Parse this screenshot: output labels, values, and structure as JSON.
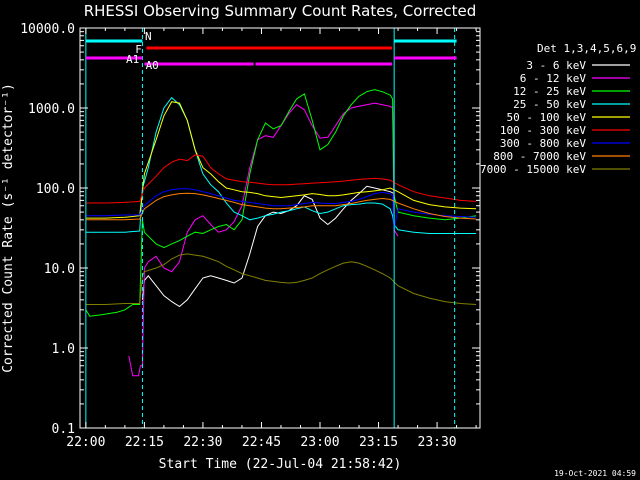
{
  "chart_data": {
    "type": "line",
    "title": "RHESSI Observing Summary Count Rates, Corrected",
    "xlabel": "Start Time (22-Jul-04 21:58:42)",
    "ylabel": "Corrected Count Rate (s⁻¹ detector⁻¹)",
    "yscale": "log",
    "ylim": [
      0.1,
      10000
    ],
    "xlim_minutes": [
      -1.5,
      101
    ],
    "x_ticks": [
      {
        "m": 0,
        "label": "22:00"
      },
      {
        "m": 15,
        "label": "22:15"
      },
      {
        "m": 30,
        "label": "22:30"
      },
      {
        "m": 45,
        "label": "22:45"
      },
      {
        "m": 60,
        "label": "23:00"
      },
      {
        "m": 75,
        "label": "23:15"
      },
      {
        "m": 90,
        "label": "23:30"
      }
    ],
    "y_ticks": [
      {
        "v": 0.1,
        "label": "0.1"
      },
      {
        "v": 1,
        "label": "1.0"
      },
      {
        "v": 10,
        "label": "10.0"
      },
      {
        "v": 100,
        "label": "100.0"
      },
      {
        "v": 1000,
        "label": "1000.0"
      },
      {
        "v": 10000,
        "label": "10000.0"
      }
    ],
    "legend_title": "Det 1,3,4,5,6,9",
    "legend_position": "right",
    "grid": false,
    "series": [
      {
        "name": "3 - 6 keV",
        "color": "#ffffff",
        "x": [
          14.5,
          15,
          16,
          18,
          20,
          22,
          24,
          26,
          28,
          30,
          32,
          34,
          36,
          38,
          40,
          42,
          44,
          46,
          48,
          50,
          52,
          54,
          56,
          58,
          60,
          62,
          64,
          66,
          68,
          70,
          72,
          74,
          76,
          78,
          79
        ],
        "y": [
          4,
          7,
          8,
          6,
          4.5,
          3.8,
          3.3,
          4,
          5.5,
          7.5,
          8,
          7.5,
          7,
          6.5,
          7.5,
          15,
          33,
          45,
          50,
          48,
          52,
          60,
          80,
          72,
          42,
          35,
          42,
          55,
          70,
          85,
          105,
          100,
          95,
          90,
          85
        ]
      },
      {
        "name": "6 - 12 keV",
        "color": "#ff00ff",
        "x": [
          11,
          12,
          13.5,
          14,
          14.5,
          15,
          16,
          18,
          20,
          22,
          24,
          26,
          28,
          30,
          32,
          34,
          36,
          38,
          40,
          42,
          44,
          46,
          48,
          50,
          52,
          54,
          56,
          58,
          60,
          62,
          64,
          66,
          68,
          70,
          72,
          74,
          76,
          78,
          78.6,
          79,
          80
        ],
        "y": [
          0.8,
          0.45,
          0.45,
          0.6,
          0.6,
          10,
          12,
          14,
          10,
          9,
          12,
          28,
          40,
          45,
          35,
          28,
          30,
          38,
          60,
          180,
          400,
          450,
          430,
          600,
          850,
          1100,
          950,
          600,
          420,
          430,
          600,
          850,
          1000,
          1050,
          1100,
          1150,
          1100,
          1050,
          1000,
          30,
          25
        ]
      },
      {
        "name": "12 - 25 keV",
        "color": "#00ff00",
        "x": [
          0,
          1,
          4,
          8,
          10,
          12,
          13.8,
          14.5,
          15,
          16,
          18,
          20,
          22,
          24,
          26,
          28,
          30,
          32,
          34,
          36,
          38,
          40,
          42,
          44,
          46,
          48,
          50,
          52,
          54,
          56,
          58,
          60,
          62,
          64,
          66,
          68,
          70,
          72,
          74,
          76,
          78,
          78.6,
          79,
          80,
          84,
          88,
          92,
          96,
          100
        ],
        "y": [
          3,
          2.5,
          2.6,
          2.8,
          3,
          3.5,
          3.5,
          40,
          28,
          25,
          20,
          18,
          20,
          22,
          25,
          28,
          27,
          30,
          33,
          35,
          30,
          40,
          150,
          400,
          650,
          550,
          600,
          900,
          1300,
          1500,
          700,
          300,
          350,
          500,
          800,
          1100,
          1400,
          1600,
          1700,
          1600,
          1450,
          1300,
          80,
          50,
          45,
          42,
          40,
          42,
          45
        ]
      },
      {
        "name": "25 - 50 keV",
        "color": "#00ffff",
        "x": [
          0,
          5,
          10,
          13.8,
          14.5,
          15,
          16,
          18,
          20,
          22,
          24,
          26,
          28,
          30,
          32,
          34,
          36,
          38,
          40,
          42,
          44,
          46,
          48,
          50,
          52,
          54,
          56,
          58,
          60,
          62,
          64,
          66,
          68,
          70,
          72,
          74,
          76,
          78,
          78.6,
          79,
          80,
          84,
          88,
          92,
          96,
          100
        ],
        "y": [
          28,
          28,
          28,
          29,
          100,
          120,
          180,
          500,
          1000,
          1350,
          1100,
          700,
          300,
          150,
          110,
          90,
          65,
          50,
          45,
          40,
          42,
          45,
          47,
          50,
          52,
          55,
          58,
          52,
          48,
          50,
          55,
          60,
          62,
          63,
          65,
          65,
          63,
          55,
          45,
          35,
          30,
          28,
          27,
          27,
          27,
          27
        ]
      },
      {
        "name": "50 - 100 keV",
        "color": "#ffff00",
        "x": [
          0,
          5,
          10,
          13.8,
          15,
          18,
          20,
          22,
          24,
          26,
          28,
          30,
          32,
          34,
          36,
          38,
          40,
          42,
          44,
          46,
          48,
          50,
          52,
          54,
          56,
          58,
          60,
          62,
          64,
          66,
          68,
          70,
          72,
          74,
          76,
          78,
          80,
          84,
          88,
          92,
          96,
          100
        ],
        "y": [
          42,
          42,
          43,
          45,
          150,
          400,
          800,
          1200,
          1150,
          700,
          300,
          180,
          150,
          120,
          100,
          95,
          90,
          88,
          85,
          80,
          78,
          76,
          78,
          80,
          82,
          85,
          83,
          80,
          80,
          82,
          85,
          88,
          90,
          92,
          95,
          100,
          90,
          70,
          62,
          58,
          56,
          55
        ]
      },
      {
        "name": "100 - 300 keV",
        "color": "#ff0000",
        "x": [
          0,
          5,
          10,
          13.8,
          15,
          18,
          20,
          22,
          24,
          26,
          28,
          30,
          32,
          34,
          36,
          38,
          40,
          42,
          44,
          46,
          48,
          50,
          52,
          54,
          56,
          58,
          60,
          62,
          64,
          66,
          68,
          70,
          72,
          74,
          76,
          78,
          80,
          84,
          88,
          92,
          96,
          100
        ],
        "y": [
          65,
          65,
          66,
          68,
          100,
          140,
          180,
          210,
          230,
          220,
          260,
          250,
          180,
          150,
          130,
          125,
          120,
          118,
          115,
          112,
          110,
          110,
          110,
          112,
          113,
          115,
          116,
          118,
          120,
          122,
          125,
          128,
          130,
          132,
          130,
          125,
          110,
          90,
          80,
          75,
          70,
          68
        ]
      },
      {
        "name": "300 - 800 keV",
        "color": "#0000ff",
        "x": [
          0,
          5,
          10,
          13.8,
          15,
          18,
          20,
          22,
          24,
          26,
          28,
          30,
          32,
          34,
          36,
          38,
          40,
          42,
          44,
          46,
          48,
          50,
          52,
          54,
          56,
          58,
          60,
          62,
          64,
          66,
          68,
          70,
          72,
          74,
          76,
          78,
          78.6,
          79,
          80,
          84,
          88,
          92,
          96,
          100
        ],
        "y": [
          45,
          45,
          46,
          46,
          60,
          80,
          90,
          95,
          98,
          98,
          95,
          90,
          85,
          80,
          75,
          70,
          68,
          66,
          64,
          62,
          60,
          60,
          60,
          62,
          64,
          66,
          65,
          64,
          64,
          66,
          68,
          72,
          78,
          85,
          88,
          85,
          80,
          30,
          55,
          50,
          47,
          45,
          44,
          43
        ]
      },
      {
        "name": "800 - 7000 keV",
        "color": "#ff7f00",
        "x": [
          0,
          5,
          10,
          13.8,
          15,
          18,
          20,
          22,
          24,
          26,
          28,
          30,
          32,
          34,
          36,
          38,
          40,
          42,
          44,
          46,
          48,
          50,
          52,
          54,
          56,
          58,
          60,
          62,
          64,
          66,
          68,
          70,
          72,
          74,
          76,
          78,
          80,
          84,
          88,
          92,
          96,
          100
        ],
        "y": [
          40,
          40,
          40,
          41,
          55,
          70,
          78,
          82,
          85,
          86,
          85,
          82,
          78,
          74,
          70,
          66,
          62,
          60,
          58,
          56,
          55,
          55,
          56,
          57,
          58,
          60,
          60,
          60,
          60,
          62,
          64,
          67,
          70,
          72,
          74,
          72,
          65,
          55,
          48,
          44,
          42,
          41
        ]
      },
      {
        "name": "7000 - 15000 keV",
        "color": "#808000",
        "x": [
          0,
          5,
          10,
          13.8,
          14.5,
          15,
          18,
          20,
          22,
          24,
          26,
          28,
          30,
          32,
          34,
          36,
          38,
          40,
          42,
          44,
          46,
          48,
          50,
          52,
          54,
          56,
          58,
          60,
          62,
          64,
          66,
          68,
          70,
          72,
          74,
          76,
          78,
          80,
          84,
          88,
          92,
          96,
          100
        ],
        "y": [
          3.5,
          3.5,
          3.6,
          3.6,
          8,
          9,
          10,
          11,
          13,
          14.5,
          15,
          14.5,
          14,
          13,
          12,
          10.5,
          9.5,
          8.5,
          8,
          7.5,
          7,
          6.8,
          6.6,
          6.5,
          6.6,
          7,
          7.5,
          8.5,
          9.5,
          10.5,
          11.5,
          12,
          11.5,
          10.5,
          9.5,
          8.5,
          7.5,
          6,
          4.8,
          4.2,
          3.8,
          3.6,
          3.5
        ]
      }
    ],
    "event_lines": [
      {
        "m": 0,
        "style": "solid"
      },
      {
        "m": 14.5,
        "style": "dashed"
      },
      {
        "m": 79,
        "style": "solid"
      },
      {
        "m": 94.5,
        "style": "dashed"
      }
    ],
    "flag_bars": [
      {
        "label": "N",
        "color": "#00ffff",
        "label_m": 16,
        "segments": [
          [
            0,
            14.5
          ],
          [
            79,
            95
          ]
        ]
      },
      {
        "label": "F",
        "color": "#ff0000",
        "label_m": 13.5,
        "segments": [
          [
            15.5,
            78.5
          ]
        ]
      },
      {
        "label": "A1",
        "color": "#ff00ff",
        "label_m": 12,
        "segments": [
          [
            0,
            14.5
          ],
          [
            79,
            95
          ]
        ]
      },
      {
        "label": "A0",
        "color": "#ff00ff",
        "label_m": 17,
        "segments": [
          [
            15,
            43
          ],
          [
            43.5,
            78.5
          ]
        ]
      }
    ],
    "footer_date": "19-Oct-2021 04:59"
  }
}
